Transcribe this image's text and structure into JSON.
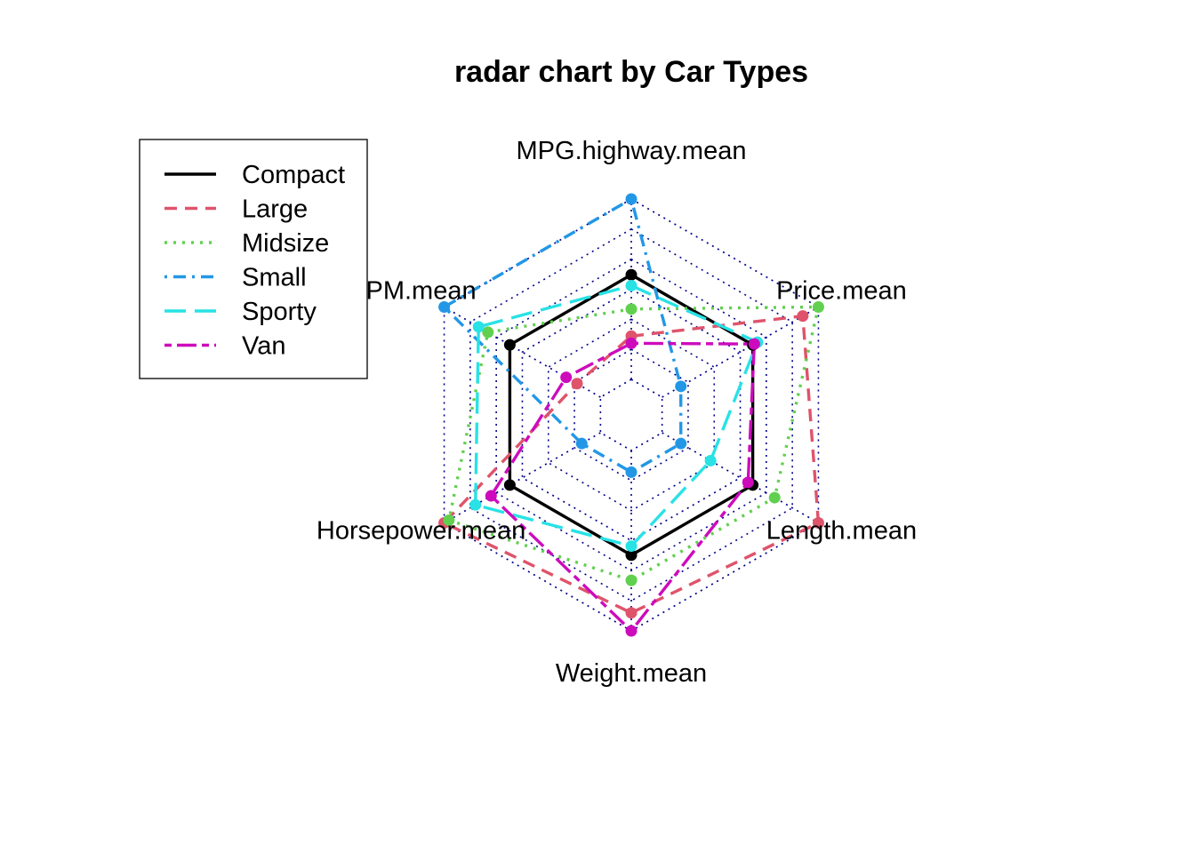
{
  "chart_data": {
    "type": "radar",
    "title": "radar chart by Car Types",
    "axes": [
      "MPG.highway.mean",
      "Price.mean",
      "Length.mean",
      "Weight.mean",
      "Horsepower.mean",
      "RPM.mean"
    ],
    "axis_label_text": [
      "MPG.highway.mean",
      "Price.mean",
      "Length.mean",
      "Weight.mean",
      "Horsepower.mean",
      "PM.mean"
    ],
    "range": [
      0,
      1
    ],
    "grid_levels": 7,
    "grid": true,
    "legend_position": "top-left",
    "series": [
      {
        "name": "Compact",
        "color": "#000000",
        "dash": "solid",
        "values": [
          0.58,
          0.58,
          0.58,
          0.58,
          0.58,
          0.58
        ]
      },
      {
        "name": "Large",
        "color": "#DF536B",
        "dash": "dashed",
        "values": [
          0.24,
          0.9,
          1.0,
          0.9,
          1.0,
          0.15
        ]
      },
      {
        "name": "Midsize",
        "color": "#61D04F",
        "dash": "dotted",
        "values": [
          0.39,
          1.0,
          0.72,
          0.72,
          0.97,
          0.72
        ]
      },
      {
        "name": "Small",
        "color": "#2297E6",
        "dash": "dashdot",
        "values": [
          1.0,
          0.12,
          0.12,
          0.12,
          0.12,
          1.0
        ]
      },
      {
        "name": "Sporty",
        "color": "#28E2E5",
        "dash": "longdash",
        "values": [
          0.52,
          0.61,
          0.31,
          0.53,
          0.8,
          0.78
        ]
      },
      {
        "name": "Van",
        "color": "#CD0BBC",
        "dash": "twodash",
        "values": [
          0.2,
          0.59,
          0.55,
          1.0,
          0.7,
          0.22
        ]
      }
    ]
  }
}
